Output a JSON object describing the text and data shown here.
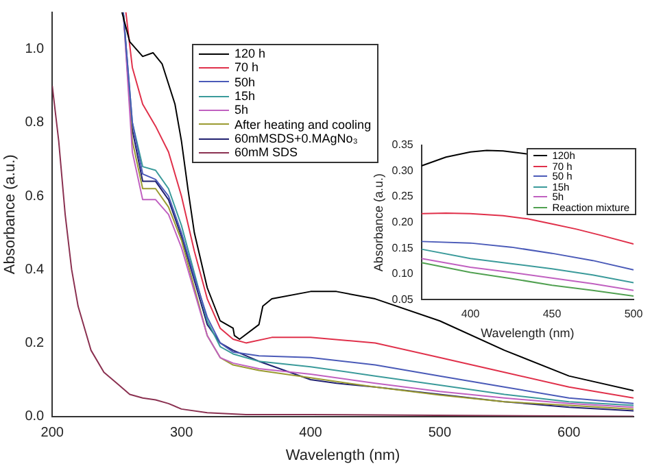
{
  "chart_data": [
    {
      "type": "line",
      "xlabel": "Wavelength (nm)",
      "ylabel": "Absorbance (a.u.)",
      "xlim": [
        200,
        650
      ],
      "ylim": [
        0,
        1.1
      ],
      "xticks": [
        200,
        300,
        400,
        500,
        600
      ],
      "yticks": [
        {
          "value": 0,
          "label": "0.0"
        },
        0.2,
        0.4,
        0.6,
        0.8,
        {
          "value": 1,
          "label": "1.0"
        }
      ],
      "grid": false,
      "legend": "top",
      "series": [
        {
          "name": "120 h",
          "color": "#000000",
          "x": [
            254,
            260,
            270,
            278,
            285,
            295,
            300,
            305,
            310,
            320,
            330,
            340,
            341,
            345,
            360,
            363,
            370,
            400,
            420,
            450,
            500,
            550,
            600,
            650
          ],
          "values": [
            1.1,
            1.02,
            0.98,
            0.99,
            0.96,
            0.85,
            0.75,
            0.62,
            0.5,
            0.35,
            0.26,
            0.24,
            0.22,
            0.21,
            0.25,
            0.3,
            0.32,
            0.34,
            0.34,
            0.32,
            0.26,
            0.18,
            0.11,
            0.07
          ]
        },
        {
          "name": "70 h",
          "color": "#e0304a",
          "x": [
            257,
            262,
            270,
            280,
            290,
            300,
            310,
            320,
            330,
            340,
            350,
            370,
            400,
            450,
            500,
            550,
            600,
            650
          ],
          "values": [
            1.1,
            0.95,
            0.85,
            0.79,
            0.72,
            0.6,
            0.45,
            0.32,
            0.24,
            0.21,
            0.2,
            0.215,
            0.215,
            0.2,
            0.16,
            0.12,
            0.08,
            0.05
          ]
        },
        {
          "name": "50h",
          "color": "#4a5ab8",
          "x": [
            255,
            262,
            270,
            280,
            290,
            300,
            310,
            320,
            330,
            340,
            360,
            400,
            450,
            500,
            550,
            600,
            650
          ],
          "values": [
            1.1,
            0.8,
            0.66,
            0.645,
            0.6,
            0.5,
            0.38,
            0.27,
            0.2,
            0.175,
            0.165,
            0.16,
            0.14,
            0.11,
            0.08,
            0.05,
            0.035
          ]
        },
        {
          "name": "15h",
          "color": "#3a9a9a",
          "x": [
            255,
            262,
            270,
            280,
            290,
            300,
            310,
            320,
            330,
            340,
            360,
            400,
            450,
            500,
            550,
            600,
            650
          ],
          "values": [
            1.1,
            0.8,
            0.68,
            0.67,
            0.62,
            0.52,
            0.39,
            0.26,
            0.19,
            0.17,
            0.15,
            0.135,
            0.11,
            0.085,
            0.06,
            0.04,
            0.03
          ]
        },
        {
          "name": "5h",
          "color": "#c060c0",
          "x": [
            255,
            262,
            270,
            280,
            290,
            300,
            310,
            320,
            330,
            340,
            360,
            400,
            450,
            500,
            550,
            600,
            650
          ],
          "values": [
            1.1,
            0.72,
            0.59,
            0.59,
            0.55,
            0.46,
            0.34,
            0.22,
            0.16,
            0.145,
            0.13,
            0.115,
            0.09,
            0.068,
            0.05,
            0.035,
            0.025
          ]
        },
        {
          "name": "After heating and cooling",
          "color": "#9a9a30",
          "x": [
            255,
            262,
            270,
            280,
            290,
            300,
            310,
            320,
            330,
            340,
            360,
            400,
            450,
            500,
            550,
            600,
            650
          ],
          "values": [
            1.1,
            0.75,
            0.62,
            0.62,
            0.57,
            0.48,
            0.35,
            0.22,
            0.16,
            0.14,
            0.125,
            0.105,
            0.08,
            0.058,
            0.04,
            0.03,
            0.02
          ]
        },
        {
          "name": "60mMSDS+0.MAgNo₃",
          "color": "#202070",
          "x": [
            255,
            262,
            270,
            280,
            290,
            300,
            310,
            320,
            330,
            340,
            360,
            400,
            420,
            450,
            500,
            550,
            600,
            650
          ],
          "values": [
            1.1,
            0.78,
            0.64,
            0.64,
            0.59,
            0.49,
            0.37,
            0.25,
            0.2,
            0.18,
            0.15,
            0.1,
            0.09,
            0.08,
            0.06,
            0.04,
            0.025,
            0.015
          ]
        },
        {
          "name": "60mM SDS",
          "color": "#8a3050",
          "x": [
            200,
            205,
            210,
            215,
            220,
            230,
            240,
            250,
            260,
            270,
            280,
            290,
            300,
            320,
            350,
            400,
            650
          ],
          "values": [
            0.9,
            0.75,
            0.55,
            0.4,
            0.3,
            0.18,
            0.12,
            0.09,
            0.06,
            0.05,
            0.045,
            0.035,
            0.02,
            0.01,
            0.005,
            0.005,
            0.0
          ]
        }
      ]
    },
    {
      "type": "line",
      "xlabel": "Wavelength (nm)",
      "ylabel": "Absorbance (a.u.)",
      "xlim": [
        370,
        500
      ],
      "ylim": [
        0.05,
        0.35
      ],
      "xticks": [
        400,
        450,
        500
      ],
      "yticks": [
        0.05,
        {
          "value": 0.1,
          "label": "0.10"
        },
        0.15,
        {
          "value": 0.2,
          "label": "0.20"
        },
        0.25,
        {
          "value": 0.3,
          "label": "0.30"
        },
        0.35
      ],
      "grid": false,
      "legend": "top right",
      "series": [
        {
          "name": "120h",
          "color": "#000000",
          "x": [
            370,
            385,
            400,
            410,
            420,
            435
          ],
          "values": [
            0.31,
            0.327,
            0.337,
            0.34,
            0.339,
            0.333
          ]
        },
        {
          "name": "70 h",
          "color": "#e0304a",
          "x": [
            370,
            385,
            400,
            420,
            435,
            450,
            465,
            480,
            500
          ],
          "values": [
            0.217,
            0.218,
            0.217,
            0.213,
            0.207,
            0.197,
            0.187,
            0.175,
            0.158
          ]
        },
        {
          "name": "50 h",
          "color": "#4a5ab8",
          "x": [
            370,
            400,
            425,
            450,
            475,
            500
          ],
          "values": [
            0.163,
            0.16,
            0.152,
            0.14,
            0.126,
            0.108
          ]
        },
        {
          "name": "15h",
          "color": "#3a9a9a",
          "x": [
            370,
            400,
            425,
            450,
            475,
            500
          ],
          "values": [
            0.148,
            0.13,
            0.12,
            0.11,
            0.098,
            0.083
          ]
        },
        {
          "name": "5h",
          "color": "#c060c0",
          "x": [
            370,
            400,
            425,
            450,
            475,
            500
          ],
          "values": [
            0.13,
            0.113,
            0.103,
            0.092,
            0.081,
            0.068
          ]
        },
        {
          "name": "Reaction mixture",
          "color": "#50a050",
          "x": [
            370,
            400,
            425,
            450,
            475,
            500
          ],
          "values": [
            0.122,
            0.103,
            0.091,
            0.078,
            0.068,
            0.057
          ]
        }
      ]
    }
  ]
}
